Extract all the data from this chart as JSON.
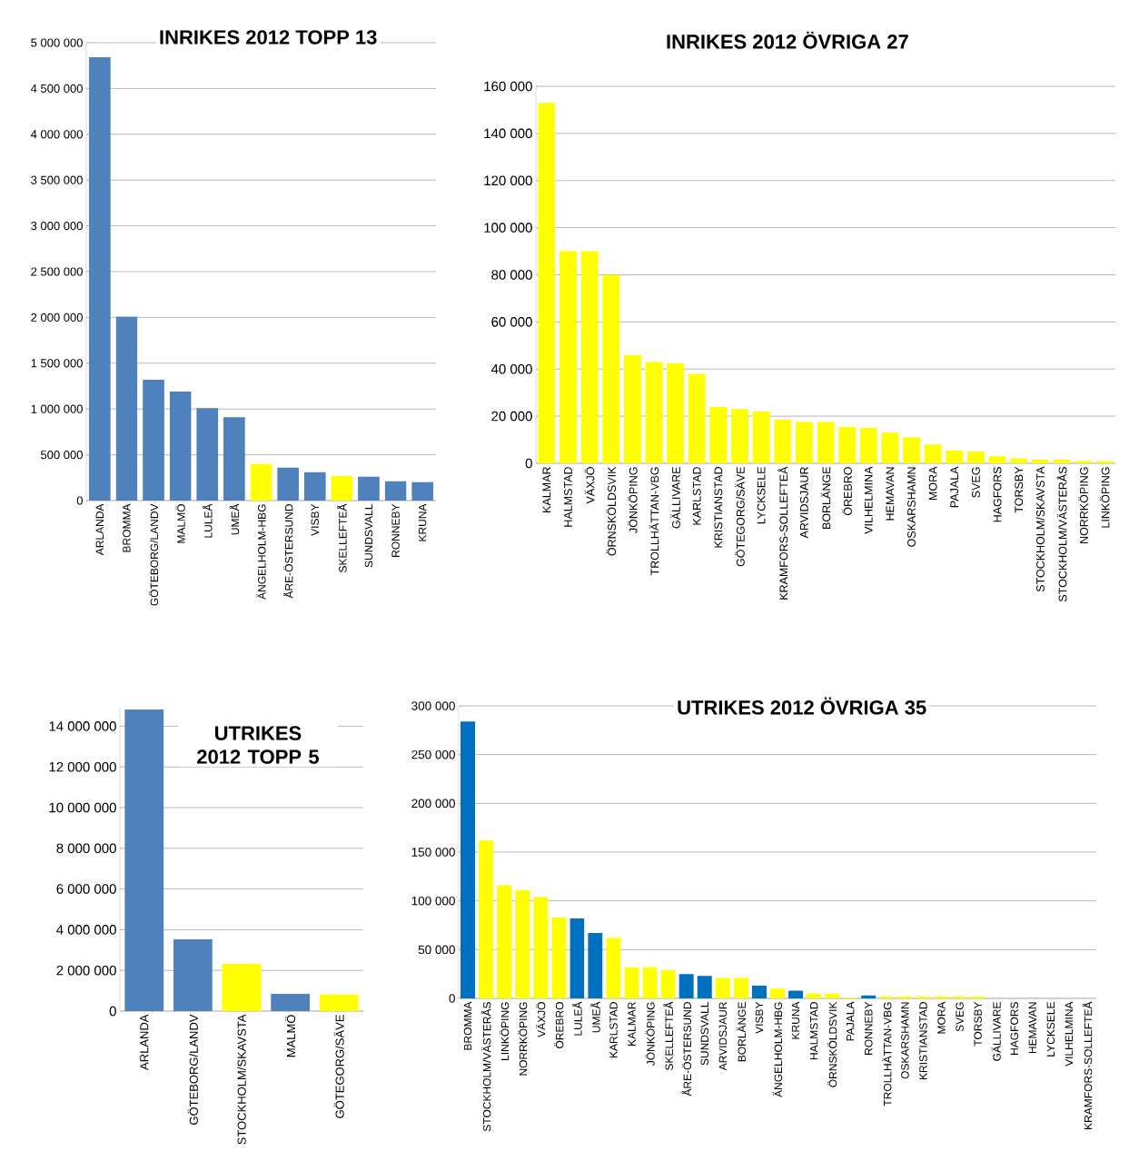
{
  "chart_data": [
    {
      "type": "bar",
      "title": "INRIKES 2012 TOPP 13",
      "categories": [
        "ARLANDA",
        "BROMMA",
        "GÖTEBORG/LANDV",
        "MALMÖ",
        "LULEÅ",
        "UMEÅ",
        "ÄNGELHOLM-HBG",
        "ÅRE-ÖSTERSUND",
        "VISBY",
        "SKELLEFTEÅ",
        "SUNDSVALL",
        "RONNEBY",
        "KRUNA"
      ],
      "values": [
        4840000,
        2010000,
        1320000,
        1190000,
        1010000,
        910000,
        400000,
        360000,
        310000,
        270000,
        260000,
        210000,
        200000
      ],
      "colors": [
        "#4f81bd",
        "#4f81bd",
        "#4f81bd",
        "#4f81bd",
        "#4f81bd",
        "#4f81bd",
        "#ffff00",
        "#4f81bd",
        "#4f81bd",
        "#ffff00",
        "#4f81bd",
        "#4f81bd",
        "#4f81bd"
      ],
      "ylim": [
        0,
        5000000
      ],
      "yticks": [
        0,
        {
          "value": 500000,
          "label": "500 000"
        },
        {
          "value": 1000000,
          "label": "1 000 000"
        },
        {
          "value": 1500000,
          "label": "1 500 000"
        },
        {
          "value": 2000000,
          "label": "2 000 000"
        },
        {
          "value": 2500000,
          "label": "2 500 000"
        },
        {
          "value": 3000000,
          "label": "3 000 000"
        },
        {
          "value": 3500000,
          "label": "3 500 000"
        },
        {
          "value": 4000000,
          "label": "4 000 000"
        },
        {
          "value": 4500000,
          "label": "4 500 000"
        },
        {
          "value": 5000000,
          "label": "5 000 000"
        }
      ],
      "grid": "y"
    },
    {
      "type": "bar",
      "title": "INRIKES 2012 ÖVRIGA 27",
      "categories": [
        "KALMAR",
        "HALMSTAD",
        "VÄXJÖ",
        "ÖRNSKÖLDSVIK",
        "JÖNKÖPING",
        "TROLLHÄTTAN-VBG",
        "GÄLLIVARE",
        "KARLSTAD",
        "KRISTIANSTAD",
        "GÖTEGORG/SÄVE",
        "LYCKSELE",
        "KRAMFORS-SOLLEFTEÅ",
        "ARVIDSJAUR",
        "BORLÄNGE",
        "ÖREBRO",
        "VILHELMINA",
        "HEMAVAN",
        "OSKARSHAMN",
        "MORA",
        "PAJALA",
        "SVEG",
        "HAGFORS",
        "TORSBY",
        "STOCKHOLM/SKAVSTA",
        "STOCKHOLM/VÄSTERÅS",
        "NORRKÖPING",
        "LINKÖPING"
      ],
      "values": [
        153000,
        90000,
        90000,
        80000,
        46000,
        43000,
        42500,
        38000,
        24000,
        23000,
        22000,
        18500,
        17500,
        17500,
        15500,
        15000,
        13000,
        11000,
        8000,
        5500,
        5000,
        3000,
        2000,
        1500,
        1500,
        1000,
        1000
      ],
      "colors": [
        "#ffff00",
        "#ffff00",
        "#ffff00",
        "#ffff00",
        "#ffff00",
        "#ffff00",
        "#ffff00",
        "#ffff00",
        "#ffff00",
        "#ffff00",
        "#ffff00",
        "#ffff00",
        "#ffff00",
        "#ffff00",
        "#ffff00",
        "#ffff00",
        "#ffff00",
        "#ffff00",
        "#ffff00",
        "#ffff00",
        "#ffff00",
        "#ffff00",
        "#ffff00",
        "#ffff00",
        "#ffff00",
        "#ffff00",
        "#ffff00"
      ],
      "ylim": [
        0,
        160000
      ],
      "yticks": [
        0,
        {
          "value": 20000,
          "label": "20 000"
        },
        {
          "value": 40000,
          "label": "40 000"
        },
        {
          "value": 60000,
          "label": "60 000"
        },
        {
          "value": 80000,
          "label": "80 000"
        },
        {
          "value": 100000,
          "label": "100 000"
        },
        {
          "value": 120000,
          "label": "120 000"
        },
        {
          "value": 140000,
          "label": "140 000"
        },
        {
          "value": 160000,
          "label": "160 000"
        }
      ],
      "grid": "y"
    },
    {
      "type": "bar",
      "title": "UTRIKES 2012 TOPP 5",
      "categories": [
        "ARLANDA",
        "GÖTEBORG/LANDV",
        "STOCKHOLM/SKAVSTA",
        "MALMÖ",
        "GÖTEGORG/SÄVE"
      ],
      "values": [
        14820000,
        3530000,
        2320000,
        850000,
        810000
      ],
      "colors": [
        "#4f81bd",
        "#4f81bd",
        "#ffff00",
        "#4f81bd",
        "#ffff00"
      ],
      "ylim": [
        0,
        15000000
      ],
      "yticks": [
        0,
        {
          "value": 2000000,
          "label": "2 000 000"
        },
        {
          "value": 4000000,
          "label": "4 000 000"
        },
        {
          "value": 6000000,
          "label": "6 000 000"
        },
        {
          "value": 8000000,
          "label": "8 000 000"
        },
        {
          "value": 10000000,
          "label": "10 000 000"
        },
        {
          "value": 12000000,
          "label": "12 000 000"
        },
        {
          "value": 14000000,
          "label": "14 000 000"
        }
      ],
      "grid": "y"
    },
    {
      "type": "bar",
      "title": "UTRIKES 2012 ÖVRIGA 35",
      "categories": [
        "BROMMA",
        "STOCKHOLM/VÄSTERÅS",
        "LINKÖPING",
        "NORRKÖPING",
        "VÄXJÖ",
        "ÖREBRO",
        "LULEÅ",
        "UMEÅ",
        "KARLSTAD",
        "KALMAR",
        "JÖNKÖPING",
        "SKELLEFTEÅ",
        "ÅRE-ÖSTERSUND",
        "SUNDSVALL",
        "ARVIDSJAUR",
        "BORLÄNGE",
        "VISBY",
        "ÄNGELHOLM-HBG",
        "KRUNA",
        "HALMSTAD",
        "ÖRNSKÖLDSVIK",
        "PAJALA",
        "RONNEBY",
        "TROLLHÄTTAN-VBG",
        "OSKARSHAMN",
        "KRISTIANSTAD",
        "MORA",
        "SVEG",
        "TORSBY",
        "GÄLLIVARE",
        "HAGFORS",
        "HEMAVAN",
        "LYCKSELE",
        "VILHELMINA",
        "KRAMFORS-SOLLEFTEÅ"
      ],
      "values": [
        284000,
        162000,
        116000,
        111000,
        104000,
        83000,
        82000,
        67000,
        62000,
        32000,
        32000,
        29000,
        25000,
        23000,
        21000,
        21000,
        13000,
        10000,
        8000,
        5000,
        5000,
        1000,
        3000,
        2000,
        2000,
        2000,
        2000,
        2000,
        2000,
        0,
        0,
        0,
        0,
        0,
        0
      ],
      "colors": [
        "#0070c0",
        "#ffff00",
        "#ffff00",
        "#ffff00",
        "#ffff00",
        "#ffff00",
        "#0070c0",
        "#0070c0",
        "#ffff00",
        "#ffff00",
        "#ffff00",
        "#ffff00",
        "#0070c0",
        "#0070c0",
        "#ffff00",
        "#ffff00",
        "#0070c0",
        "#ffff00",
        "#0070c0",
        "#ffff00",
        "#ffff00",
        "#ffff00",
        "#0070c0",
        "#ffff00",
        "#ffff00",
        "#ffff00",
        "#ffff00",
        "#ffff00",
        "#ffff00",
        "#ffff00",
        "#ffff00",
        "#ffff00",
        "#ffff00",
        "#ffff00",
        "#ffff00"
      ],
      "ylim": [
        0,
        300000
      ],
      "yticks": [
        0,
        {
          "value": 50000,
          "label": "50 000"
        },
        {
          "value": 100000,
          "label": "100 000"
        },
        {
          "value": 150000,
          "label": "150 000"
        },
        {
          "value": 200000,
          "label": "200 000"
        },
        {
          "value": 250000,
          "label": "250 000"
        },
        {
          "value": 300000,
          "label": "300 000"
        }
      ],
      "grid": "y"
    }
  ]
}
